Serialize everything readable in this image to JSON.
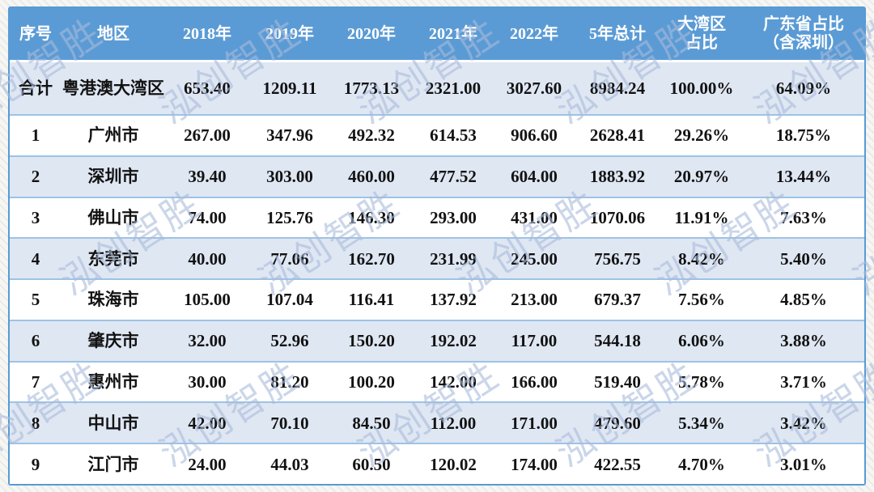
{
  "watermark": {
    "text": "泓创智胜"
  },
  "colors": {
    "header_bg": "#5b9bd5",
    "stripe_bg": "#dfe7f3",
    "row_bg": "#ffffff",
    "separator": "#9dc3e6",
    "outer_border": "#569bd5",
    "header_text": "#ffffff",
    "body_text": "#121212",
    "watermark_text": "#a8badb"
  },
  "chart_data": {
    "type": "table",
    "columns": [
      "序号",
      "地区",
      "2018年",
      "2019年",
      "2020年",
      "2021年",
      "2022年",
      "5年总计",
      "大湾区\n占比",
      "广东省占比\n（含深圳）"
    ],
    "rows": [
      [
        "合计",
        "粤港澳大湾区",
        "653.40",
        "1209.11",
        "1773.13",
        "2321.00",
        "3027.60",
        "8984.24",
        "100.00%",
        "64.09%"
      ],
      [
        "1",
        "广州市",
        "267.00",
        "347.96",
        "492.32",
        "614.53",
        "906.60",
        "2628.41",
        "29.26%",
        "18.75%"
      ],
      [
        "2",
        "深圳市",
        "39.40",
        "303.00",
        "460.00",
        "477.52",
        "604.00",
        "1883.92",
        "20.97%",
        "13.44%"
      ],
      [
        "3",
        "佛山市",
        "74.00",
        "125.76",
        "146.30",
        "293.00",
        "431.00",
        "1070.06",
        "11.91%",
        "7.63%"
      ],
      [
        "4",
        "东莞市",
        "40.00",
        "77.06",
        "162.70",
        "231.99",
        "245.00",
        "756.75",
        "8.42%",
        "5.40%"
      ],
      [
        "5",
        "珠海市",
        "105.00",
        "107.04",
        "116.41",
        "137.92",
        "213.00",
        "679.37",
        "7.56%",
        "4.85%"
      ],
      [
        "6",
        "肇庆市",
        "32.00",
        "52.96",
        "150.20",
        "192.02",
        "117.00",
        "544.18",
        "6.06%",
        "3.88%"
      ],
      [
        "7",
        "惠州市",
        "30.00",
        "81.20",
        "100.20",
        "142.00",
        "166.00",
        "519.40",
        "5.78%",
        "3.71%"
      ],
      [
        "8",
        "中山市",
        "42.00",
        "70.10",
        "84.50",
        "112.00",
        "171.00",
        "479.60",
        "5.34%",
        "3.42%"
      ],
      [
        "9",
        "江门市",
        "24.00",
        "44.03",
        "60.50",
        "120.02",
        "174.00",
        "422.55",
        "4.70%",
        "3.01%"
      ]
    ]
  }
}
